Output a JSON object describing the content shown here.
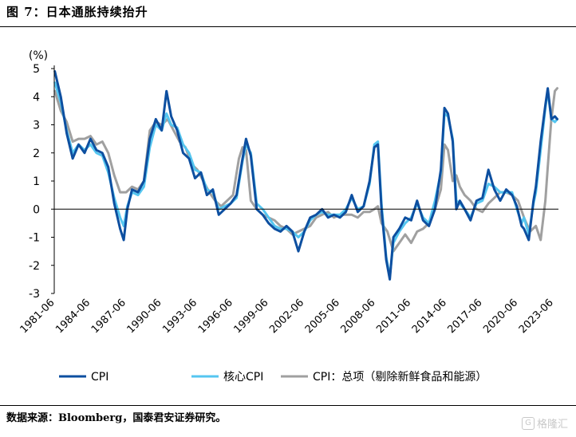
{
  "figure": {
    "title": "图 7：日本通胀持续抬升",
    "source": "数据来源：Bloomberg，国泰君安证券研究。",
    "watermark": "格隆汇"
  },
  "colors": {
    "cpi": "#0d4fa0",
    "core": "#55c6f0",
    "overall": "#a0a0a0"
  },
  "chart_data": {
    "type": "line",
    "title": "",
    "ylabel": "(%)",
    "xlabel": "",
    "ylim": [
      -3,
      5
    ],
    "yticks": [
      -3,
      -2,
      -1,
      0,
      1,
      2,
      3,
      4,
      5
    ],
    "xlim": [
      1981.45,
      2023.9
    ],
    "xticks": [
      {
        "x": 1981.5,
        "label": "1981-06"
      },
      {
        "x": 1984.5,
        "label": "1984-06"
      },
      {
        "x": 1987.5,
        "label": "1987-06"
      },
      {
        "x": 1990.5,
        "label": "1990-06"
      },
      {
        "x": 1993.5,
        "label": "1993-06"
      },
      {
        "x": 1996.5,
        "label": "1996-06"
      },
      {
        "x": 1999.5,
        "label": "1999-06"
      },
      {
        "x": 2002.5,
        "label": "2002-06"
      },
      {
        "x": 2005.5,
        "label": "2005-06"
      },
      {
        "x": 2008.5,
        "label": "2008-06"
      },
      {
        "x": 2011.5,
        "label": "2011-06"
      },
      {
        "x": 2014.5,
        "label": "2014-06"
      },
      {
        "x": 2017.5,
        "label": "2017-06"
      },
      {
        "x": 2020.5,
        "label": "2020-06"
      },
      {
        "x": 2023.5,
        "label": "2023-06"
      }
    ],
    "legend_position": "bottom",
    "series": [
      {
        "name": "CPI",
        "x": [
          1981.5,
          1982,
          1982.5,
          1983,
          1983.5,
          1984,
          1984.5,
          1985,
          1985.5,
          1986,
          1986.5,
          1987,
          1987.3,
          1987.6,
          1988,
          1988.5,
          1989,
          1989.5,
          1990,
          1990.5,
          1990.9,
          1991.3,
          1991.8,
          1992.3,
          1992.8,
          1993.3,
          1993.8,
          1994.3,
          1994.8,
          1995.3,
          1995.8,
          1996.3,
          1996.8,
          1997.3,
          1997.6,
          1998,
          1998.5,
          1999,
          1999.5,
          2000,
          2000.5,
          2001,
          2001.5,
          2002,
          2002.5,
          2003,
          2003.5,
          2004,
          2004.5,
          2005,
          2005.5,
          2006,
          2006.5,
          2007,
          2007.5,
          2008,
          2008.4,
          2008.7,
          2009,
          2009.4,
          2009.7,
          2010,
          2010.5,
          2011,
          2011.5,
          2012,
          2012.5,
          2013,
          2013.5,
          2014,
          2014.3,
          2014.6,
          2015,
          2015.3,
          2015.6,
          2016,
          2016.5,
          2017,
          2017.5,
          2018,
          2018.5,
          2019,
          2019.5,
          2020,
          2020.4,
          2020.8,
          2021,
          2021.4,
          2021.8,
          2022,
          2022.4,
          2022.8,
          2023,
          2023.3,
          2023.6,
          2023.8
        ],
        "values": [
          4.9,
          4.0,
          2.7,
          1.8,
          2.3,
          2.0,
          2.5,
          2.1,
          2.0,
          1.5,
          0.2,
          -0.7,
          -1.1,
          0.0,
          0.7,
          0.6,
          1.0,
          2.5,
          3.2,
          2.8,
          4.2,
          3.3,
          2.8,
          2.0,
          1.8,
          1.1,
          1.3,
          0.5,
          0.7,
          -0.2,
          0.0,
          0.2,
          0.5,
          1.8,
          2.5,
          1.9,
          0.0,
          -0.2,
          -0.5,
          -0.7,
          -0.8,
          -0.6,
          -0.8,
          -1.5,
          -0.8,
          -0.3,
          -0.2,
          0.0,
          -0.3,
          -0.2,
          -0.3,
          -0.1,
          0.5,
          -0.1,
          0.1,
          1.0,
          2.2,
          2.3,
          0.0,
          -1.8,
          -2.5,
          -1.0,
          -0.7,
          -0.3,
          -0.4,
          0.3,
          -0.4,
          -0.6,
          0.0,
          1.4,
          3.6,
          3.4,
          2.4,
          0.0,
          0.3,
          0.0,
          -0.4,
          0.3,
          0.4,
          1.4,
          0.7,
          0.3,
          0.7,
          0.5,
          0.1,
          -0.6,
          -0.7,
          -1.1,
          0.3,
          0.8,
          2.4,
          3.7,
          4.3,
          3.2,
          3.3,
          3.2
        ]
      },
      {
        "name": "核心CPI",
        "x": [
          1981.5,
          1982,
          1982.5,
          1983,
          1983.5,
          1984,
          1984.5,
          1985,
          1985.5,
          1986,
          1986.5,
          1987,
          1987.3,
          1987.6,
          1988,
          1988.5,
          1989,
          1989.5,
          1990,
          1990.5,
          1990.9,
          1991.3,
          1991.8,
          1992.3,
          1992.8,
          1993.3,
          1993.8,
          1994.3,
          1994.8,
          1995.3,
          1995.8,
          1996.3,
          1996.8,
          1997.3,
          1997.6,
          1998,
          1998.5,
          1999,
          1999.5,
          2000,
          2000.5,
          2001,
          2001.5,
          2002,
          2002.5,
          2003,
          2003.5,
          2004,
          2004.5,
          2005,
          2005.5,
          2006,
          2006.5,
          2007,
          2007.5,
          2008,
          2008.4,
          2008.7,
          2009,
          2009.4,
          2009.7,
          2010,
          2010.5,
          2011,
          2011.5,
          2012,
          2012.5,
          2013,
          2013.5,
          2014,
          2014.3,
          2014.6,
          2015,
          2015.3,
          2015.6,
          2016,
          2016.5,
          2017,
          2017.5,
          2018,
          2018.5,
          2019,
          2019.5,
          2020,
          2020.4,
          2020.8,
          2021,
          2021.4,
          2021.8,
          2022,
          2022.4,
          2022.8,
          2023,
          2023.3,
          2023.6,
          2023.8
        ],
        "values": [
          4.5,
          3.8,
          2.8,
          2.0,
          2.3,
          2.1,
          2.3,
          2.0,
          1.9,
          1.3,
          0.4,
          -0.3,
          -0.6,
          0.1,
          0.6,
          0.5,
          0.8,
          2.2,
          3.0,
          2.8,
          3.4,
          3.0,
          2.9,
          2.3,
          2.0,
          1.4,
          1.3,
          0.7,
          0.6,
          0.0,
          0.1,
          0.2,
          0.4,
          1.7,
          2.3,
          2.0,
          0.2,
          0.0,
          -0.3,
          -0.6,
          -0.7,
          -0.7,
          -0.8,
          -1.0,
          -0.8,
          -0.4,
          -0.2,
          -0.1,
          -0.2,
          -0.2,
          -0.2,
          0.0,
          0.4,
          0.0,
          0.1,
          0.9,
          2.3,
          2.4,
          0.2,
          -1.7,
          -2.4,
          -1.2,
          -0.8,
          -0.5,
          -0.3,
          0.2,
          -0.3,
          -0.5,
          0.3,
          1.3,
          3.4,
          3.3,
          2.5,
          0.3,
          0.2,
          0.0,
          -0.3,
          0.2,
          0.3,
          0.9,
          0.8,
          0.6,
          0.6,
          0.6,
          0.0,
          -0.5,
          -0.3,
          -0.9,
          0.2,
          0.6,
          2.1,
          3.6,
          4.2,
          3.2,
          3.1,
          3.2
        ]
      },
      {
        "name": "CPI：总项（剔除新鲜食品和能源）",
        "x": [
          1981.5,
          1982,
          1982.5,
          1983,
          1983.5,
          1984,
          1984.5,
          1985,
          1985.5,
          1986,
          1986.5,
          1987,
          1987.5,
          1988,
          1988.5,
          1989,
          1989.5,
          1990,
          1990.5,
          1991,
          1991.5,
          1992,
          1992.5,
          1993,
          1993.5,
          1994,
          1994.5,
          1995,
          1995.5,
          1996,
          1996.5,
          1997,
          1997.3,
          1997.6,
          1998,
          1998.5,
          1999,
          1999.5,
          2000,
          2000.5,
          2001,
          2001.5,
          2002,
          2002.5,
          2003,
          2003.5,
          2004,
          2004.5,
          2005,
          2005.5,
          2006,
          2006.5,
          2007,
          2007.5,
          2008,
          2008.4,
          2008.7,
          2009,
          2009.5,
          2010,
          2010.5,
          2011,
          2011.5,
          2012,
          2012.5,
          2013,
          2013.5,
          2014,
          2014.3,
          2014.6,
          2015,
          2015.3,
          2015.6,
          2016,
          2016.5,
          2017,
          2017.5,
          2018,
          2018.5,
          2019,
          2019.5,
          2020,
          2020.5,
          2021,
          2021.5,
          2022,
          2022.4,
          2022.8,
          2023,
          2023.3,
          2023.6,
          2023.8
        ],
        "values": [
          4.2,
          3.5,
          3.1,
          2.4,
          2.5,
          2.5,
          2.6,
          2.3,
          2.4,
          2.0,
          1.2,
          0.6,
          0.6,
          0.8,
          0.7,
          1.0,
          2.8,
          3.1,
          3.0,
          3.2,
          2.8,
          2.4,
          2.2,
          1.6,
          1.4,
          1.0,
          0.6,
          0.3,
          0.1,
          0.3,
          0.5,
          1.8,
          2.2,
          2.1,
          0.3,
          0.0,
          -0.2,
          -0.3,
          -0.4,
          -0.6,
          -0.7,
          -0.9,
          -0.8,
          -0.7,
          -0.6,
          -0.3,
          -0.2,
          -0.1,
          -0.3,
          -0.2,
          -0.2,
          -0.2,
          -0.3,
          -0.1,
          -0.1,
          0.0,
          0.1,
          -0.5,
          -0.8,
          -1.5,
          -1.2,
          -0.9,
          -1.2,
          -0.8,
          -0.7,
          -0.5,
          0.0,
          0.7,
          2.3,
          2.1,
          1.0,
          1.2,
          0.8,
          0.5,
          0.3,
          0.0,
          -0.1,
          0.2,
          0.4,
          0.6,
          0.6,
          0.5,
          0.3,
          -0.3,
          -0.8,
          -0.6,
          -1.1,
          0.3,
          1.5,
          3.2,
          4.2,
          4.3
        ]
      }
    ]
  }
}
